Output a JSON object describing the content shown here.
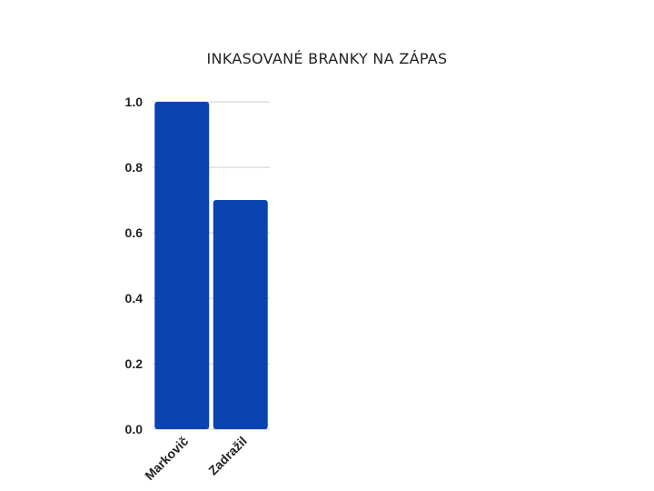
{
  "chart_data": {
    "type": "bar",
    "title": "INKASOVANÉ BRANKY NA ZÁPAS",
    "xlabel": "",
    "ylabel": "",
    "categories": [
      "Markovič",
      "Zadražil"
    ],
    "values": [
      1.0,
      0.7
    ],
    "ylim": [
      0,
      1.0
    ],
    "yticks": [
      "0.0",
      "0.2",
      "0.4",
      "0.6",
      "0.8",
      "1.0"
    ],
    "grid": true,
    "bar_color": "#0a44b0",
    "grid_color": "#cccccc"
  }
}
